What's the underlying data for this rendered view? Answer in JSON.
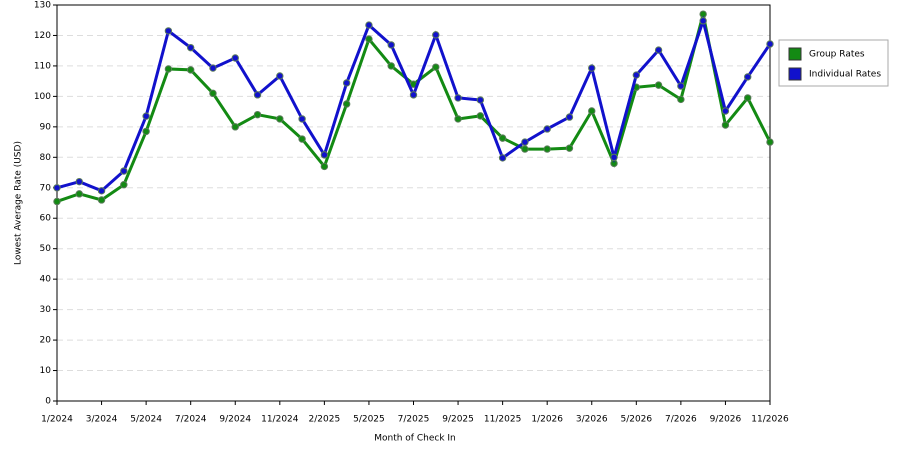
{
  "chart_data": {
    "type": "line",
    "x_label": "Month of Check In",
    "y_label": "Lowest Average Rate (USD)",
    "categories": [
      "1/2024",
      null,
      "3/2024",
      null,
      "5/2024",
      null,
      "7/2024",
      null,
      "9/2024",
      null,
      "11/2024",
      null,
      "2/2025",
      null,
      "5/2025",
      null,
      "7/2025",
      null,
      "9/2025",
      null,
      "11/2025",
      null,
      "1/2026",
      null,
      "3/2026",
      null,
      "5/2026",
      null,
      "7/2026",
      null,
      "9/2026",
      null,
      "11/2026"
    ],
    "series": [
      {
        "name": "Group Rates",
        "color": "#138a13",
        "values": [
          65.5,
          68,
          66,
          71,
          88.5,
          109,
          108.7,
          101,
          90,
          94,
          92.6,
          86,
          77,
          97.5,
          118.8,
          110,
          104,
          109.6,
          92.6,
          93.6,
          86.3,
          82.7,
          82.7,
          83,
          95.2,
          78,
          103,
          103.7,
          99,
          127,
          90.6,
          99.5,
          85
        ]
      },
      {
        "name": "Individual Rates",
        "color": "#1111cc",
        "values": [
          70,
          72,
          69,
          75.5,
          93.5,
          121.5,
          116,
          109.3,
          112.6,
          100.5,
          106.7,
          92.6,
          80.8,
          104.4,
          123.4,
          116.9,
          100.5,
          120.2,
          99.5,
          98.8,
          79.8,
          85,
          89.3,
          93.2,
          109.3,
          80,
          107,
          115.2,
          103.4,
          124.8,
          95.2,
          106.4,
          117.2
        ]
      }
    ],
    "ylim": [
      0,
      130
    ],
    "yticks": [
      0,
      10,
      20,
      30,
      40,
      50,
      60,
      70,
      80,
      90,
      100,
      110,
      120,
      130
    ],
    "grid": true,
    "legend": "right"
  }
}
